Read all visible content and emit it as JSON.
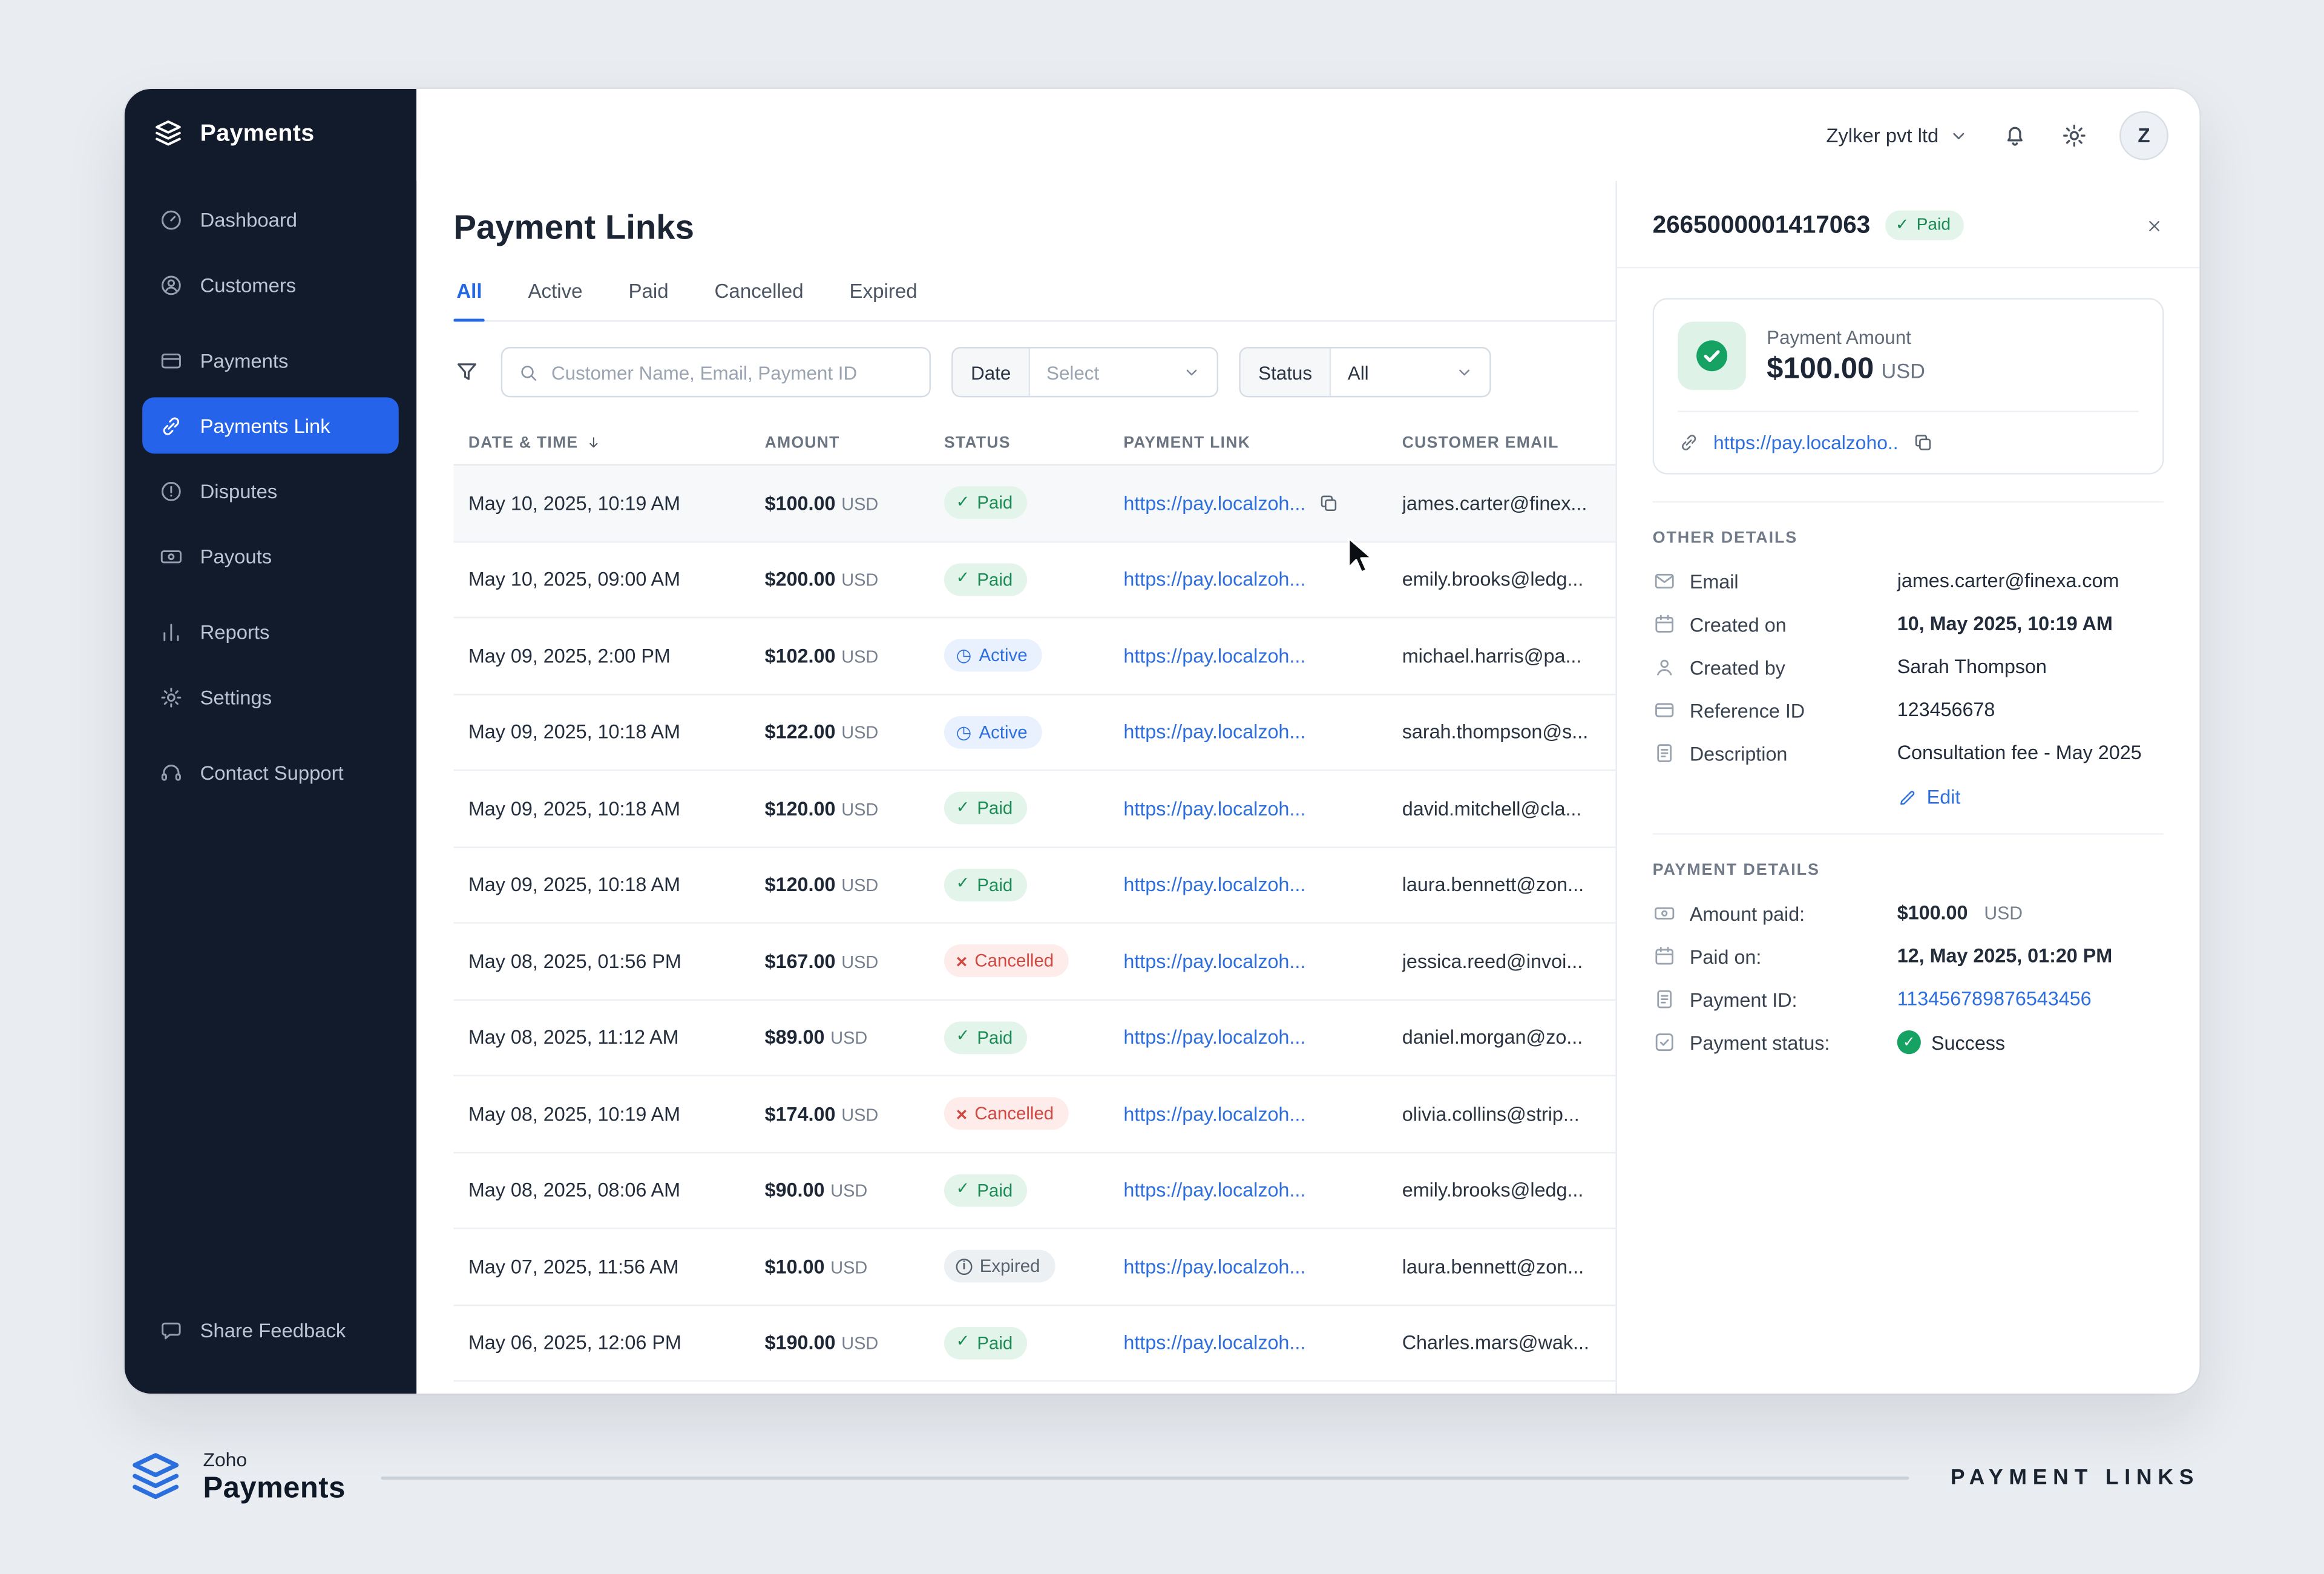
{
  "topbar": {
    "org": "Zylker pvt ltd",
    "avatar": "Z"
  },
  "sidebar": {
    "brand": "Payments",
    "items": [
      {
        "label": "Dashboard",
        "icon": "dashboard-icon"
      },
      {
        "label": "Customers",
        "icon": "customers-icon"
      },
      {
        "label": "Payments",
        "icon": "payments-icon",
        "gap_before": true
      },
      {
        "label": "Payments Link",
        "icon": "link-icon",
        "active": true
      },
      {
        "label": "Disputes",
        "icon": "disputes-icon"
      },
      {
        "label": "Payouts",
        "icon": "payouts-icon"
      },
      {
        "label": "Reports",
        "icon": "reports-icon",
        "gap_before": true
      },
      {
        "label": "Settings",
        "icon": "settings-icon"
      },
      {
        "label": "Contact Support",
        "icon": "support-icon",
        "gap_before": true
      }
    ],
    "footer_label": "Share Feedback"
  },
  "page": {
    "title": "Payment Links",
    "tabs": [
      {
        "label": "All",
        "active": true
      },
      {
        "label": "Active"
      },
      {
        "label": "Paid"
      },
      {
        "label": "Cancelled"
      },
      {
        "label": "Expired"
      }
    ]
  },
  "filters": {
    "search_placeholder": "Customer Name, Email, Payment ID",
    "date_label": "Date",
    "date_value": "Select",
    "status_label": "Status",
    "status_value": "All"
  },
  "table": {
    "columns": [
      "DATE & TIME",
      "AMOUNT",
      "STATUS",
      "PAYMENT LINK",
      "CUSTOMER EMAIL"
    ],
    "rows": [
      {
        "datetime": "May 10, 2025, 10:19 AM",
        "amount": "$100.00",
        "currency": "USD",
        "status": "Paid",
        "status_type": "paid",
        "link": "https://pay.localzoh...",
        "email": "james.carter@finex...",
        "selected": true,
        "show_copy": true
      },
      {
        "datetime": "May 10, 2025, 09:00 AM",
        "amount": "$200.00",
        "currency": "USD",
        "status": "Paid",
        "status_type": "paid",
        "link": "https://pay.localzoh...",
        "email": "emily.brooks@ledg..."
      },
      {
        "datetime": "May 09, 2025, 2:00 PM",
        "amount": "$102.00",
        "currency": "USD",
        "status": "Active",
        "status_type": "active",
        "link": "https://pay.localzoh...",
        "email": "michael.harris@pa..."
      },
      {
        "datetime": "May 09, 2025, 10:18 AM",
        "amount": "$122.00",
        "currency": "USD",
        "status": "Active",
        "status_type": "active",
        "link": "https://pay.localzoh...",
        "email": "sarah.thompson@s..."
      },
      {
        "datetime": "May 09, 2025, 10:18 AM",
        "amount": "$120.00",
        "currency": "USD",
        "status": "Paid",
        "status_type": "paid",
        "link": "https://pay.localzoh...",
        "email": "david.mitchell@cla..."
      },
      {
        "datetime": "May 09, 2025, 10:18 AM",
        "amount": "$120.00",
        "currency": "USD",
        "status": "Paid",
        "status_type": "paid",
        "link": "https://pay.localzoh...",
        "email": "laura.bennett@zon..."
      },
      {
        "datetime": "May 08, 2025, 01:56 PM",
        "amount": "$167.00",
        "currency": "USD",
        "status": "Cancelled",
        "status_type": "cancelled",
        "link": "https://pay.localzoh...",
        "email": "jessica.reed@invoi..."
      },
      {
        "datetime": "May 08, 2025, 11:12 AM",
        "amount": "$89.00",
        "currency": "USD",
        "status": "Paid",
        "status_type": "paid",
        "link": "https://pay.localzoh...",
        "email": "daniel.morgan@zo..."
      },
      {
        "datetime": "May 08, 2025, 10:19 AM",
        "amount": "$174.00",
        "currency": "USD",
        "status": "Cancelled",
        "status_type": "cancelled",
        "link": "https://pay.localzoh...",
        "email": "olivia.collins@strip..."
      },
      {
        "datetime": "May 08, 2025, 08:06 AM",
        "amount": "$90.00",
        "currency": "USD",
        "status": "Paid",
        "status_type": "paid",
        "link": "https://pay.localzoh...",
        "email": "emily.brooks@ledg..."
      },
      {
        "datetime": "May 07, 2025, 11:56 AM",
        "amount": "$10.00",
        "currency": "USD",
        "status": "Expired",
        "status_type": "expired",
        "link": "https://pay.localzoh...",
        "email": "laura.bennett@zon..."
      },
      {
        "datetime": "May 06, 2025, 12:06 PM",
        "amount": "$190.00",
        "currency": "USD",
        "status": "Paid",
        "status_type": "paid",
        "link": "https://pay.localzoh...",
        "email": "Charles.mars@wak..."
      }
    ]
  },
  "detail": {
    "id": "2665000001417063",
    "status_badge": "Paid",
    "amount_label": "Payment Amount",
    "amount": "$100.00",
    "currency": "USD",
    "payment_link": "https://pay.localzoho..",
    "other_details_title": "OTHER DETAILS",
    "other_details": [
      {
        "label": "Email",
        "icon": "mail-icon",
        "value": "james.carter@finexa.com",
        "style": "plain"
      },
      {
        "label": "Created on",
        "icon": "calendar-icon",
        "value": "10, May 2025, 10:19 AM",
        "style": "bold"
      },
      {
        "label": "Created by",
        "icon": "user-icon",
        "value": "Sarah Thompson",
        "style": "plain"
      },
      {
        "label": "Reference ID",
        "icon": "card-icon",
        "value": "123456678",
        "style": "plain"
      },
      {
        "label": "Description",
        "icon": "doc-icon",
        "value": "Consultation fee - May 2025",
        "style": "plain"
      }
    ],
    "edit_label": "Edit",
    "payment_details_title": "PAYMENT DETAILS",
    "payment_details": [
      {
        "label": "Amount paid:",
        "icon": "money-icon",
        "value": "$100.00",
        "suffix": "USD",
        "style": "amount"
      },
      {
        "label": "Paid on:",
        "icon": "calendar-icon",
        "value": "12, May 2025, 01:20 PM",
        "style": "bold"
      },
      {
        "label": "Payment ID:",
        "icon": "doc-icon",
        "value": "113456789876543456",
        "style": "link"
      },
      {
        "label": "Payment status:",
        "icon": "check-square-icon",
        "value": "Success",
        "style": "status"
      }
    ]
  },
  "footer": {
    "brand_small": "Zoho",
    "brand_large": "Payments",
    "right_label": "PAYMENT LINKS"
  },
  "glyphs": {
    "paid": "✓",
    "active": "◷",
    "cancelled": "×",
    "expired": "i"
  },
  "colors": {
    "accent": "#2563eb",
    "sidebar_bg": "#121b2c",
    "paid_green": "#1b8a55",
    "active_blue": "#2e6fdd",
    "cancelled_red": "#d14842",
    "expired_gray": "#57616e",
    "link_blue": "#2e6fdd",
    "success_green": "#16a262"
  }
}
